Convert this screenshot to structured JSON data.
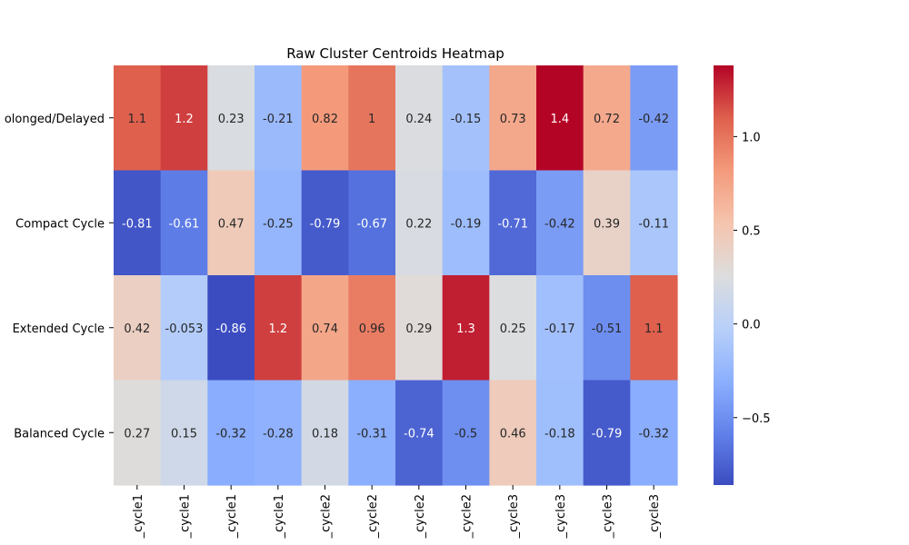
{
  "chart_data": {
    "type": "heatmap",
    "title": "Raw Cluster Centroids Heatmap",
    "rows": [
      "Prolonged/Delayed",
      "Compact Cycle",
      "Extended Cycle",
      "Balanced Cycle"
    ],
    "row_labels_display": [
      "olonged/Delayed",
      "Compact Cycle",
      "Extended Cycle",
      "Balanced Cycle"
    ],
    "columns_display": [
      "_cycle1",
      "_cycle1",
      "_cycle1",
      "_cycle1",
      "_cycle2",
      "_cycle2",
      "_cycle2",
      "_cycle2",
      "_cycle3",
      "_cycle3",
      "_cycle3",
      "_cycle3"
    ],
    "values": [
      [
        1.1,
        1.2,
        0.23,
        -0.21,
        0.82,
        1.0,
        0.24,
        -0.15,
        0.73,
        1.38,
        0.72,
        -0.42
      ],
      [
        -0.81,
        -0.61,
        0.47,
        -0.25,
        -0.79,
        -0.67,
        0.22,
        -0.19,
        -0.71,
        -0.42,
        0.39,
        -0.11
      ],
      [
        0.42,
        -0.053,
        -0.86,
        1.2,
        0.74,
        0.96,
        0.29,
        1.3,
        0.25,
        -0.17,
        -0.51,
        1.1
      ],
      [
        0.27,
        0.15,
        -0.32,
        -0.28,
        0.18,
        -0.31,
        -0.74,
        -0.5,
        0.46,
        -0.18,
        -0.79,
        -0.32
      ]
    ],
    "annotations": [
      [
        "1.1",
        "1.2",
        "0.23",
        "-0.21",
        "0.82",
        "1",
        "0.24",
        "-0.15",
        "0.73",
        "1.4",
        "0.72",
        "-0.42"
      ],
      [
        "-0.81",
        "-0.61",
        "0.47",
        "-0.25",
        "-0.79",
        "-0.67",
        "0.22",
        "-0.19",
        "-0.71",
        "-0.42",
        "0.39",
        "-0.11"
      ],
      [
        "0.42",
        "-0.053",
        "-0.86",
        "1.2",
        "0.74",
        "0.96",
        "0.29",
        "1.3",
        "0.25",
        "-0.17",
        "-0.51",
        "1.1"
      ],
      [
        "0.27",
        "0.15",
        "-0.32",
        "-0.28",
        "0.18",
        "-0.31",
        "-0.74",
        "-0.5",
        "0.46",
        "-0.18",
        "-0.79",
        "-0.32"
      ]
    ],
    "colormap": "coolwarm",
    "vmin": -0.86,
    "vmax": 1.38,
    "colorbar_ticks": [
      1.0,
      0.5,
      0.0,
      -0.5
    ],
    "colorbar_tick_labels": [
      "1.0",
      "0.5",
      "0.0",
      "−0.5"
    ]
  }
}
